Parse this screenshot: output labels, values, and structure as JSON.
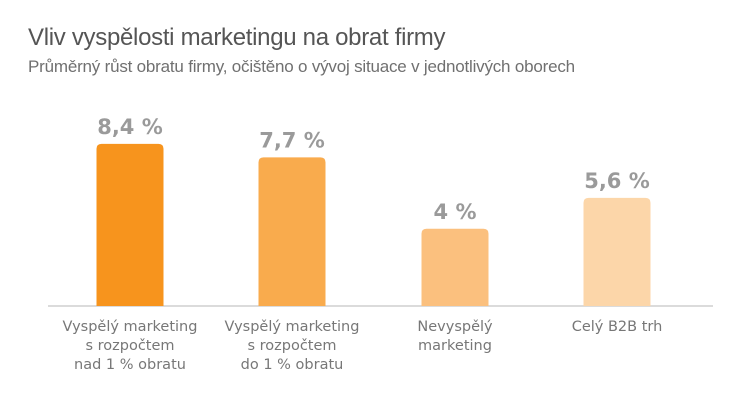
{
  "chart_data": {
    "type": "bar",
    "title": "Vliv vyspělosti marketingu na obrat firmy",
    "subtitle": "Průměrný růst obratu firmy, očištěno o vývoj situace v jednotlivých oborech",
    "categories": [
      [
        "Vyspělý marketing",
        "s rozpočtem",
        "nad 1 % obratu"
      ],
      [
        "Vyspělý marketing",
        "s rozpočtem",
        "do 1 % obratu"
      ],
      [
        "Nevyspělý",
        "marketing"
      ],
      [
        "Celý B2B trh"
      ]
    ],
    "values": [
      8.4,
      7.7,
      4,
      5.6
    ],
    "value_labels": [
      "8,4 %",
      "7,7 %",
      "4 %",
      "5,6 %"
    ],
    "bar_colors": [
      "#f7941d",
      "#f9ab4d",
      "#fbc07e",
      "#fcd6a9"
    ],
    "ylim": [
      0,
      10
    ],
    "grid": false,
    "legend": "none",
    "xlabel": "",
    "ylabel": ""
  }
}
